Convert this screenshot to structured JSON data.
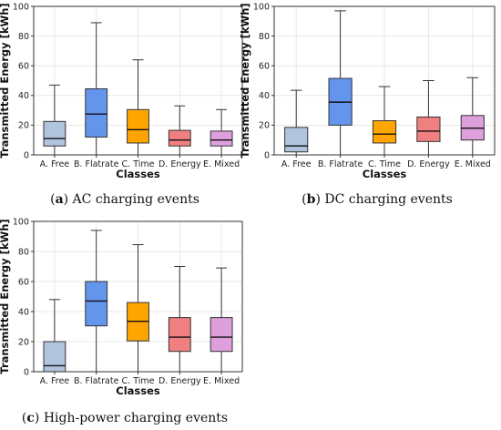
{
  "chart_data": [
    {
      "type": "box",
      "xlabel": "Classes",
      "ylabel": "Transmitted Energy [kWh]",
      "ylim": [
        0,
        100
      ],
      "yticks": [
        0,
        20,
        40,
        60,
        80,
        100
      ],
      "grid": true,
      "caption": {
        "letter": "a",
        "text": "AC charging events"
      },
      "boxes": [
        {
          "category": "A. Free",
          "color": "#b0c4de",
          "whisker_low": 0,
          "q1": 6,
          "median": 11,
          "q3": 22.5,
          "whisker_high": 47
        },
        {
          "category": "B. Flatrate",
          "color": "#6495ed",
          "whisker_low": 0,
          "q1": 12,
          "median": 27.5,
          "q3": 44.5,
          "whisker_high": 89
        },
        {
          "category": "C. Time",
          "color": "#ffa500",
          "whisker_low": 0,
          "q1": 8,
          "median": 17,
          "q3": 30.5,
          "whisker_high": 64
        },
        {
          "category": "D. Energy",
          "color": "#f08080",
          "whisker_low": 0,
          "q1": 6,
          "median": 10,
          "q3": 16.5,
          "whisker_high": 33
        },
        {
          "category": "E. Mixed",
          "color": "#dda0dd",
          "whisker_low": 0,
          "q1": 6,
          "median": 10,
          "q3": 16,
          "whisker_high": 30.5
        }
      ]
    },
    {
      "type": "box",
      "xlabel": "Classes",
      "ylabel": "Transmitted Energy [kWh]",
      "ylim": [
        0,
        100
      ],
      "yticks": [
        0,
        20,
        40,
        60,
        80,
        100
      ],
      "grid": true,
      "caption": {
        "letter": "b",
        "text": "DC charging events"
      },
      "boxes": [
        {
          "category": "A. Free",
          "color": "#b0c4de",
          "whisker_low": 0,
          "q1": 2,
          "median": 6,
          "q3": 18.5,
          "whisker_high": 43.5
        },
        {
          "category": "B. Flatrate",
          "color": "#6495ed",
          "whisker_low": 0,
          "q1": 20,
          "median": 35.5,
          "q3": 51.5,
          "whisker_high": 97
        },
        {
          "category": "C. Time",
          "color": "#ffa500",
          "whisker_low": 0,
          "q1": 8,
          "median": 14,
          "q3": 23,
          "whisker_high": 46
        },
        {
          "category": "D. Energy",
          "color": "#f08080",
          "whisker_low": 0,
          "q1": 9,
          "median": 16,
          "q3": 25.5,
          "whisker_high": 50
        },
        {
          "category": "E. Mixed",
          "color": "#dda0dd",
          "whisker_low": 0,
          "q1": 10,
          "median": 18,
          "q3": 26.5,
          "whisker_high": 52
        }
      ]
    },
    {
      "type": "box",
      "xlabel": "Classes",
      "ylabel": "Transmitted Energy [kWh]",
      "ylim": [
        0,
        100
      ],
      "yticks": [
        0,
        20,
        40,
        60,
        80,
        100
      ],
      "grid": true,
      "caption": {
        "letter": "c",
        "text": "High-power charging events"
      },
      "boxes": [
        {
          "category": "A. Free",
          "color": "#b0c4de",
          "whisker_low": 0,
          "q1": 0,
          "median": 4,
          "q3": 20,
          "whisker_high": 48
        },
        {
          "category": "B. Flatrate",
          "color": "#6495ed",
          "whisker_low": 0,
          "q1": 30.5,
          "median": 47,
          "q3": 60,
          "whisker_high": 94
        },
        {
          "category": "C. Time",
          "color": "#ffa500",
          "whisker_low": 0,
          "q1": 20.5,
          "median": 33.5,
          "q3": 46,
          "whisker_high": 84.5
        },
        {
          "category": "D. Energy",
          "color": "#f08080",
          "whisker_low": 0,
          "q1": 13.5,
          "median": 23,
          "q3": 36,
          "whisker_high": 70
        },
        {
          "category": "E. Mixed",
          "color": "#dda0dd",
          "whisker_low": 0,
          "q1": 13.5,
          "median": 23,
          "q3": 36,
          "whisker_high": 69
        }
      ]
    }
  ]
}
